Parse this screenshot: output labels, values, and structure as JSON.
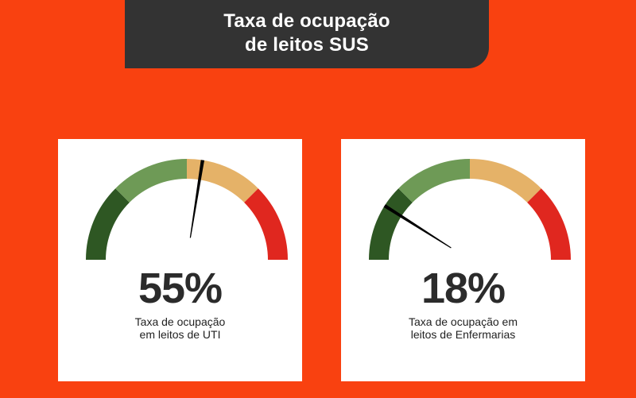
{
  "title": {
    "line1": "Taxa de ocupação",
    "line2": "de leitos SUS"
  },
  "colors": {
    "background": "#f94110",
    "banner": "#333333",
    "zones": [
      "#2e5723",
      "#6e9a56",
      "#e5b268",
      "#e0271f"
    ],
    "needle": "#000000"
  },
  "chart_data": [
    {
      "type": "gauge",
      "value": 55,
      "range": [
        0,
        100
      ],
      "zones": 4,
      "value_label": "55%",
      "caption": [
        "Taxa de ocupação",
        "em leitos de UTI"
      ]
    },
    {
      "type": "gauge",
      "value": 18,
      "range": [
        0,
        100
      ],
      "zones": 4,
      "value_label": "18%",
      "caption": [
        "Taxa de ocupação em",
        "leitos de Enfermarias"
      ]
    }
  ]
}
